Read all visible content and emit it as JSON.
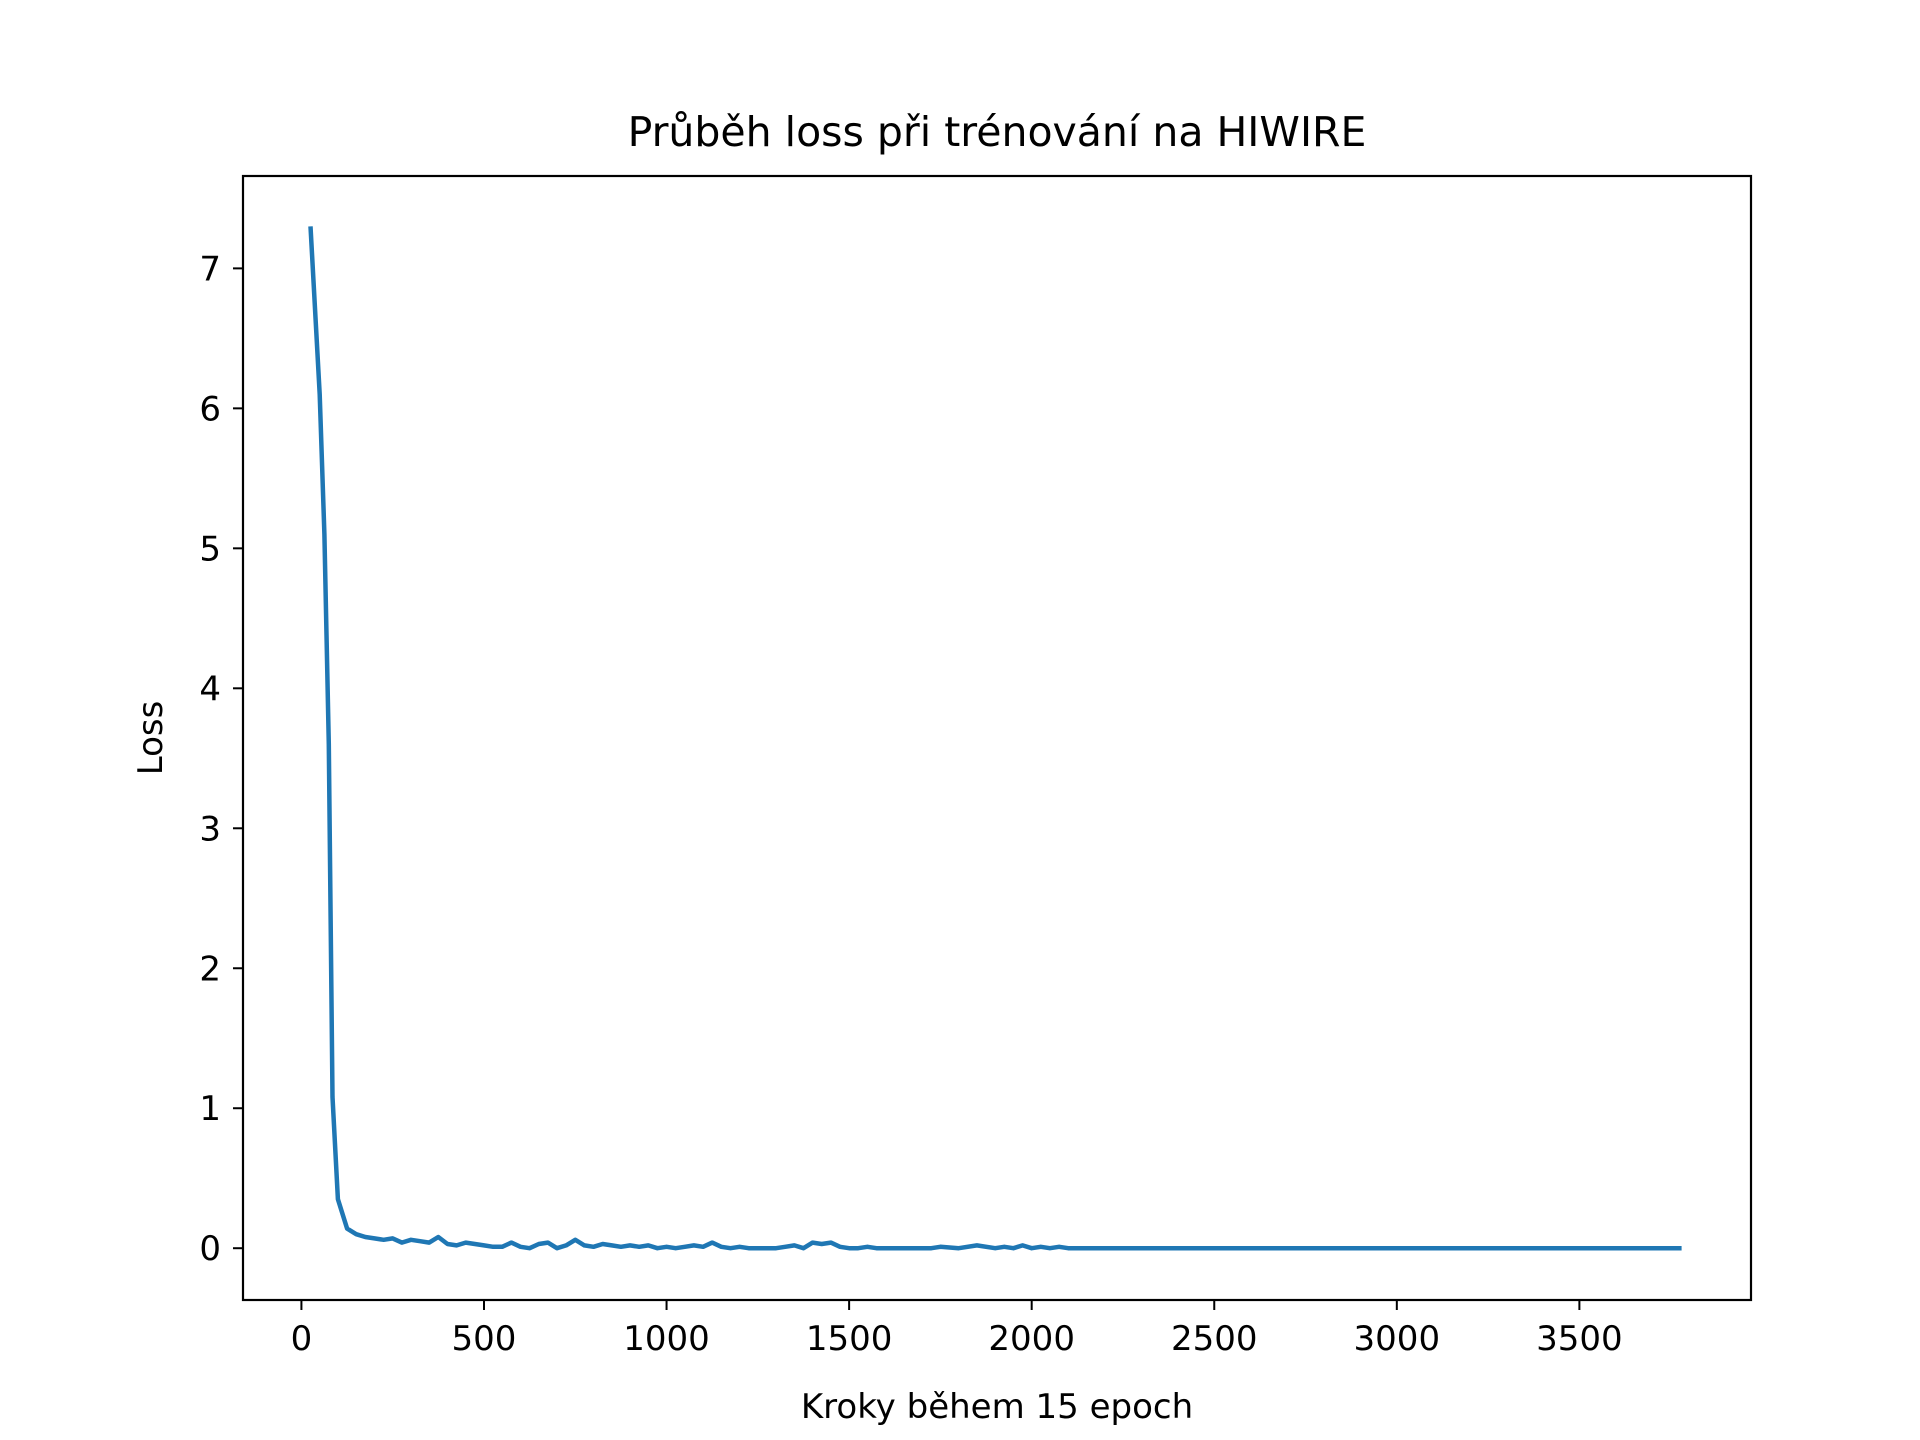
{
  "chart_data": {
    "type": "line",
    "title": "Průběh loss při trénování na HIWIRE",
    "xlabel": "Kroky během 15 epoch",
    "ylabel": "Loss",
    "xlim": [
      -160,
      3970
    ],
    "ylim": [
      -0.37,
      7.66
    ],
    "xticks": [
      0,
      500,
      1000,
      1500,
      2000,
      2500,
      3000,
      3500
    ],
    "yticks": [
      0,
      1,
      2,
      3,
      4,
      5,
      6,
      7
    ],
    "grid": false,
    "legend": "none",
    "line_color": "#1f77b4",
    "series": [
      {
        "x": [
          25,
          50,
          63,
          75,
          85,
          100,
          125,
          150,
          175,
          200,
          225,
          250,
          275,
          300,
          325,
          350,
          375,
          400,
          425,
          450,
          475,
          500,
          525,
          550,
          575,
          600,
          625,
          650,
          675,
          700,
          725,
          750,
          775,
          800,
          825,
          850,
          875,
          900,
          925,
          950,
          975,
          1000,
          1025,
          1050,
          1075,
          1100,
          1125,
          1150,
          1175,
          1200,
          1225,
          1250,
          1275,
          1300,
          1325,
          1350,
          1375,
          1400,
          1425,
          1450,
          1475,
          1500,
          1525,
          1550,
          1575,
          1600,
          1625,
          1650,
          1675,
          1700,
          1725,
          1750,
          1800,
          1850,
          1900,
          1925,
          1950,
          1975,
          2000,
          2025,
          2050,
          2075,
          2100,
          2125,
          2150,
          2175,
          2200,
          2225,
          2250,
          2300,
          2350,
          2400,
          2500,
          3000,
          3500,
          3780
        ],
        "values": [
          7.3,
          6.1,
          5.1,
          3.6,
          1.08,
          0.35,
          0.14,
          0.1,
          0.08,
          0.07,
          0.06,
          0.07,
          0.04,
          0.06,
          0.05,
          0.04,
          0.08,
          0.03,
          0.02,
          0.04,
          0.03,
          0.02,
          0.01,
          0.01,
          0.04,
          0.01,
          0.0,
          0.03,
          0.04,
          0.0,
          0.02,
          0.06,
          0.02,
          0.01,
          0.03,
          0.02,
          0.01,
          0.02,
          0.01,
          0.02,
          0.0,
          0.01,
          0.0,
          0.01,
          0.02,
          0.01,
          0.04,
          0.01,
          0.0,
          0.01,
          0.0,
          0.0,
          0.0,
          0.0,
          0.01,
          0.02,
          0.0,
          0.04,
          0.03,
          0.04,
          0.01,
          0.0,
          0.0,
          0.01,
          0.0,
          0.0,
          0.0,
          0.0,
          0.0,
          0.0,
          0.0,
          0.01,
          0.0,
          0.02,
          0.0,
          0.01,
          0.0,
          0.02,
          0.0,
          0.01,
          0.0,
          0.01,
          0.0,
          0.0,
          0.0,
          0.0,
          0.0,
          0.0,
          0.0,
          0.0,
          0.0,
          0.0,
          0.0,
          0.0,
          0.0,
          0.0
        ]
      }
    ]
  }
}
